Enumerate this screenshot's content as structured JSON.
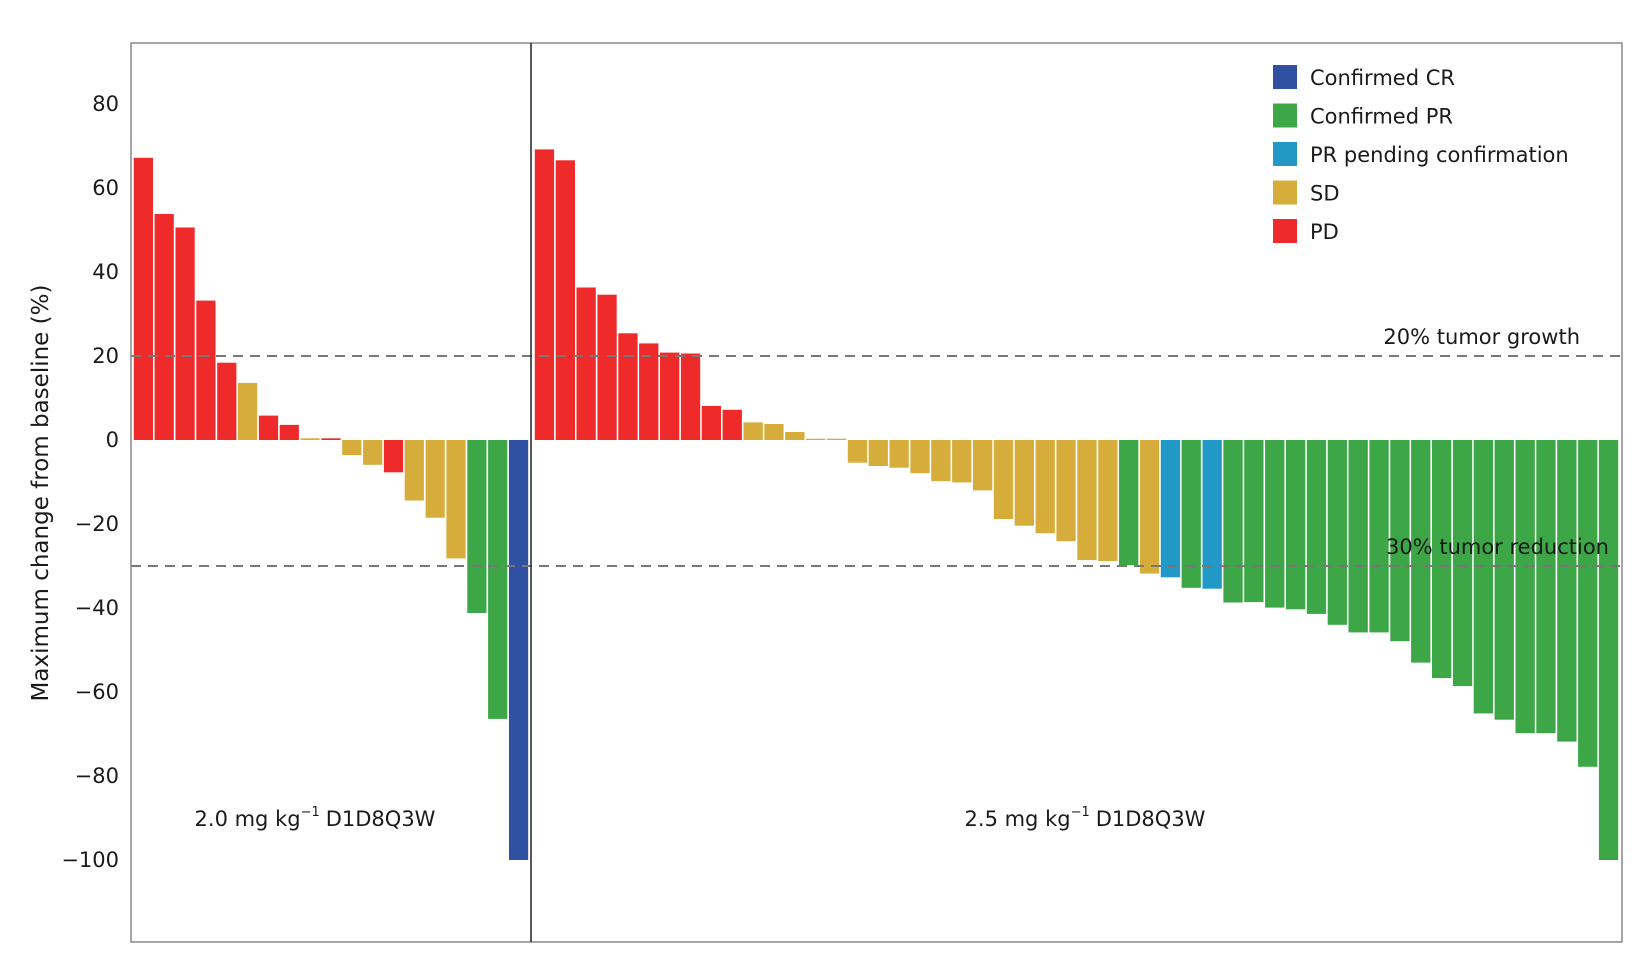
{
  "chart_data": {
    "type": "bar",
    "subtype": "waterfall",
    "ylabel": "Maximum change from baseline (%)",
    "ylim": [
      -120,
      95
    ],
    "yticks": [
      80,
      60,
      40,
      20,
      0,
      -20,
      -40,
      -60,
      -80,
      -100
    ],
    "grid": false,
    "legend_position": "top-right",
    "legend": [
      {
        "key": "CR",
        "label": "Confirmed CR",
        "color": "#3050A2"
      },
      {
        "key": "PR",
        "label": "Confirmed PR",
        "color": "#3DA646"
      },
      {
        "key": "PRP",
        "label": "PR pending confirmation",
        "color": "#2298C6"
      },
      {
        "key": "SD",
        "label": "SD",
        "color": "#D6AC3A"
      },
      {
        "key": "PD",
        "label": "PD",
        "color": "#EE2B2A"
      }
    ],
    "reference_lines": [
      {
        "value": 20,
        "label": "20% tumor growth"
      },
      {
        "value": -30,
        "label": "30% tumor reduction"
      }
    ],
    "panels": [
      {
        "dose": "2.0 mg kg",
        "sup": "−1",
        "regimen": "D1D8Q3W",
        "values": [
          67.2,
          53.8,
          50.6,
          33.2,
          18.4,
          13.6,
          5.8,
          3.6,
          0.4,
          0.4,
          -3.6,
          -5.9,
          -7.7,
          -14.4,
          -18.5,
          -28.2,
          -41.2,
          -66.4,
          -100
        ],
        "responses": [
          "PD",
          "PD",
          "PD",
          "PD",
          "PD",
          "SD",
          "PD",
          "PD",
          "SD",
          "PD",
          "SD",
          "SD",
          "PD",
          "SD",
          "SD",
          "SD",
          "PR",
          "PR",
          "CR"
        ]
      },
      {
        "dose": "2.5 mg kg",
        "sup": "−1",
        "regimen": "D1D8Q3W",
        "values": [
          69.2,
          66.6,
          36.3,
          34.6,
          25.4,
          23.0,
          20.8,
          20.6,
          8.1,
          7.2,
          4.2,
          3.8,
          1.9,
          0.3,
          0.3,
          -5.4,
          -6.2,
          -6.6,
          -7.9,
          -9.8,
          -10.1,
          -12.0,
          -18.8,
          -20.4,
          -22.2,
          -24.1,
          -28.6,
          -28.8,
          -29.8,
          -31.8,
          -32.7,
          -35.2,
          -35.4,
          -38.7,
          -38.6,
          -39.9,
          -40.3,
          -41.4,
          -44.0,
          -45.8,
          -45.8,
          -47.9,
          -53.0,
          -56.7,
          -58.6,
          -65.1,
          -66.6,
          -69.8,
          -69.8,
          -71.8,
          -77.8,
          -100
        ],
        "responses": [
          "PD",
          "PD",
          "PD",
          "PD",
          "PD",
          "PD",
          "PD",
          "PD",
          "PD",
          "PD",
          "SD",
          "SD",
          "SD",
          "SD",
          "SD",
          "SD",
          "SD",
          "SD",
          "SD",
          "SD",
          "SD",
          "SD",
          "SD",
          "SD",
          "SD",
          "SD",
          "SD",
          "SD",
          "PR",
          "SD",
          "PRP",
          "PR",
          "PRP",
          "PR",
          "PR",
          "PR",
          "PR",
          "PR",
          "PR",
          "PR",
          "PR",
          "PR",
          "PR",
          "PR",
          "PR",
          "PR",
          "PR",
          "PR",
          "PR",
          "PR",
          "PR",
          "PR"
        ]
      }
    ]
  }
}
